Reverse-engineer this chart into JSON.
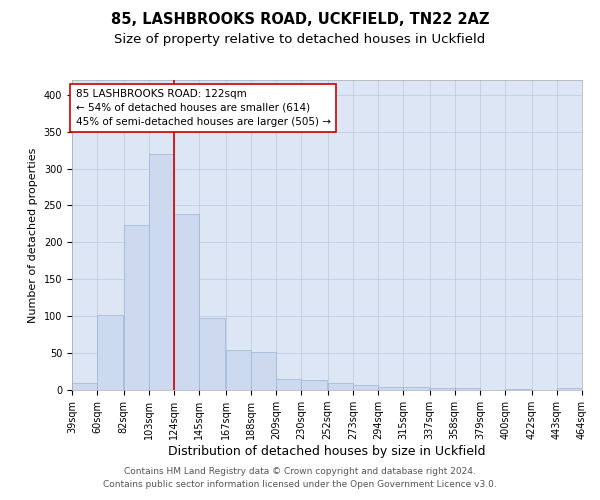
{
  "title1": "85, LASHBROOKS ROAD, UCKFIELD, TN22 2AZ",
  "title2": "Size of property relative to detached houses in Uckfield",
  "xlabel": "Distribution of detached houses by size in Uckfield",
  "ylabel": "Number of detached properties",
  "footer1": "Contains HM Land Registry data © Crown copyright and database right 2024.",
  "footer2": "Contains public sector information licensed under the Open Government Licence v3.0.",
  "annotation_line1": "85 LASHBROOKS ROAD: 122sqm",
  "annotation_line2": "← 54% of detached houses are smaller (614)",
  "annotation_line3": "45% of semi-detached houses are larger (505) →",
  "bar_left_edges": [
    39,
    60,
    82,
    103,
    124,
    145,
    167,
    188,
    209,
    230,
    252,
    273,
    294,
    315,
    337,
    358,
    379,
    400,
    422,
    443
  ],
  "bar_widths": [
    21,
    22,
    21,
    21,
    21,
    22,
    21,
    21,
    21,
    22,
    21,
    21,
    21,
    22,
    21,
    21,
    21,
    22,
    21,
    21
  ],
  "bar_heights": [
    10,
    102,
    224,
    320,
    238,
    97,
    54,
    52,
    15,
    14,
    10,
    7,
    4,
    4,
    3,
    3,
    0,
    1,
    0,
    3
  ],
  "tick_labels": [
    "39sqm",
    "60sqm",
    "82sqm",
    "103sqm",
    "124sqm",
    "145sqm",
    "167sqm",
    "188sqm",
    "209sqm",
    "230sqm",
    "252sqm",
    "273sqm",
    "294sqm",
    "315sqm",
    "337sqm",
    "358sqm",
    "379sqm",
    "400sqm",
    "422sqm",
    "443sqm",
    "464sqm"
  ],
  "bar_color": "#ccd9ee",
  "bar_edge_color": "#9db3d4",
  "vline_color": "#cc0000",
  "vline_x": 124,
  "annotation_box_color": "#ffffff",
  "annotation_box_edge": "#cc0000",
  "plot_bg_color": "#dce6f5",
  "background_color": "#ffffff",
  "grid_color": "#b8c8dc",
  "ylim": [
    0,
    420
  ],
  "yticks": [
    0,
    50,
    100,
    150,
    200,
    250,
    300,
    350,
    400
  ],
  "title1_fontsize": 10.5,
  "title2_fontsize": 9.5,
  "xlabel_fontsize": 9,
  "ylabel_fontsize": 8,
  "tick_fontsize": 7,
  "annotation_fontsize": 7.5,
  "footer_fontsize": 6.5
}
